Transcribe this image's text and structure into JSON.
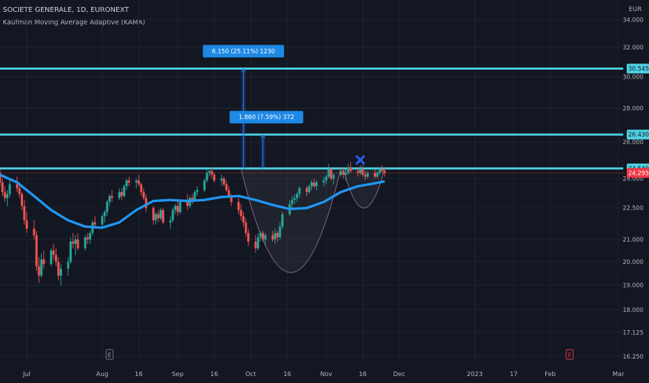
{
  "chart_data": {
    "type": "candlestick",
    "symbol_line": "SOCIETE GENERALE, 1D, EURONEXT",
    "indicator_line": "Kaufman Moving Average Adaptive (KAMA)",
    "currency": "EUR",
    "y_scale": "log",
    "ylim": [
      16.0,
      35.5
    ],
    "y_ticks": [
      "34.000",
      "32.000",
      "30.000",
      "28.000",
      "26.000",
      "24.000",
      "22.500",
      "21.000",
      "20.000",
      "19.000",
      "18.000",
      "17.125",
      "16.250"
    ],
    "x_range": [
      "2022-06-20",
      "2023-03-03"
    ],
    "x_ticks": [
      {
        "label": "Jul",
        "date": "2022-07-01"
      },
      {
        "label": "Aug",
        "date": "2022-08-01"
      },
      {
        "label": "16",
        "date": "2022-08-16"
      },
      {
        "label": "Sep",
        "date": "2022-09-01"
      },
      {
        "label": "16",
        "date": "2022-09-16"
      },
      {
        "label": "Oct",
        "date": "2022-10-01"
      },
      {
        "label": "16",
        "date": "2022-10-16"
      },
      {
        "label": "Nov",
        "date": "2022-11-01"
      },
      {
        "label": "16",
        "date": "2022-11-16"
      },
      {
        "label": "Dec",
        "date": "2022-12-01"
      },
      {
        "label": "2023",
        "date": "2023-01-01"
      },
      {
        "label": "17",
        "date": "2023-01-17"
      },
      {
        "label": "Feb",
        "date": "2023-02-01"
      },
      {
        "label": "Mar",
        "date": "2023-03-01"
      }
    ],
    "horizontal_levels": [
      {
        "label": "30.545",
        "value": 30.545,
        "color": "#4dd0e1"
      },
      {
        "label": "26.430",
        "value": 26.43,
        "color": "#4dd0e1"
      },
      {
        "label": "24.540",
        "value": 24.54,
        "color": "#4dd0e1"
      }
    ],
    "last_price": {
      "label": "24.295",
      "value": 24.295,
      "color": "#f23645"
    },
    "measure_labels": [
      {
        "text": "6.150 (25.11%) 1230",
        "value": 30.545
      },
      {
        "text": "1.860 (7.59%) 372",
        "value": 26.43
      }
    ],
    "event_markers": [
      {
        "letter": "E",
        "date": "2022-08-04"
      },
      {
        "letter": "E",
        "date": "2023-02-09"
      }
    ],
    "colors": {
      "up": "#26a69a",
      "down": "#ef5350",
      "kama": "#2196f3",
      "cup": "#7b5e7b",
      "mark": "#2962ff",
      "label_box": "#1e88e5"
    },
    "series": [
      {
        "name": "SOCIETE GENERALE",
        "ohlc": [
          [
            "2022-06-20",
            24.3,
            24.5,
            23.6,
            23.8
          ],
          [
            "2022-06-21",
            23.8,
            24.0,
            23.1,
            23.3
          ],
          [
            "2022-06-22",
            23.3,
            23.6,
            22.8,
            23.0
          ],
          [
            "2022-06-23",
            23.0,
            23.4,
            22.6,
            23.2
          ],
          [
            "2022-06-24",
            23.2,
            23.9,
            23.0,
            23.7
          ],
          [
            "2022-06-27",
            23.7,
            24.1,
            23.3,
            23.5
          ],
          [
            "2022-06-28",
            23.5,
            23.8,
            23.0,
            23.2
          ],
          [
            "2022-06-29",
            23.2,
            23.3,
            22.4,
            22.6
          ],
          [
            "2022-06-30",
            22.6,
            22.9,
            21.7,
            21.9
          ],
          [
            "2022-07-01",
            21.9,
            22.3,
            21.3,
            21.5
          ],
          [
            "2022-07-04",
            21.5,
            21.9,
            21.0,
            21.2
          ],
          [
            "2022-07-05",
            21.2,
            21.4,
            19.6,
            19.8
          ],
          [
            "2022-07-06",
            19.8,
            20.2,
            19.1,
            19.4
          ],
          [
            "2022-07-07",
            19.4,
            20.4,
            19.3,
            20.1
          ],
          [
            "2022-07-08",
            20.1,
            20.5,
            19.7,
            19.9
          ],
          [
            "2022-07-11",
            19.9,
            20.6,
            19.8,
            20.5
          ],
          [
            "2022-07-12",
            20.5,
            20.8,
            20.1,
            20.3
          ],
          [
            "2022-07-13",
            20.3,
            20.6,
            19.8,
            20.0
          ],
          [
            "2022-07-14",
            20.0,
            20.2,
            19.2,
            19.4
          ],
          [
            "2022-07-15",
            19.4,
            19.9,
            19.0,
            19.7
          ],
          [
            "2022-07-18",
            19.7,
            20.2,
            19.4,
            20.0
          ],
          [
            "2022-07-19",
            20.0,
            21.1,
            19.9,
            20.9
          ],
          [
            "2022-07-20",
            20.9,
            21.3,
            20.6,
            20.8
          ],
          [
            "2022-07-21",
            20.8,
            21.2,
            20.3,
            21.0
          ],
          [
            "2022-07-22",
            21.0,
            21.3,
            20.5,
            20.6
          ],
          [
            "2022-07-25",
            20.6,
            21.2,
            20.5,
            21.1
          ],
          [
            "2022-07-26",
            21.1,
            21.3,
            20.8,
            21.0
          ],
          [
            "2022-07-27",
            21.0,
            21.4,
            20.8,
            21.3
          ],
          [
            "2022-07-28",
            21.3,
            21.9,
            21.2,
            21.8
          ],
          [
            "2022-07-29",
            21.8,
            22.1,
            21.5,
            21.7
          ],
          [
            "2022-08-01",
            21.7,
            22.2,
            21.6,
            22.1
          ],
          [
            "2022-08-02",
            22.1,
            22.4,
            21.8,
            22.3
          ],
          [
            "2022-08-03",
            22.3,
            22.9,
            22.1,
            22.8
          ],
          [
            "2022-08-04",
            22.8,
            23.2,
            22.6,
            23.1
          ],
          [
            "2022-08-05",
            23.1,
            23.4,
            22.8,
            23.0
          ],
          [
            "2022-08-08",
            23.0,
            23.5,
            22.9,
            23.3
          ],
          [
            "2022-08-09",
            23.3,
            23.5,
            22.9,
            23.1
          ],
          [
            "2022-08-10",
            23.1,
            23.7,
            23.0,
            23.6
          ],
          [
            "2022-08-11",
            23.6,
            24.0,
            23.4,
            23.9
          ],
          [
            "2022-08-12",
            23.9,
            24.1,
            23.6,
            23.8
          ],
          [
            "2022-08-15",
            23.8,
            24.0,
            23.5,
            23.9
          ],
          [
            "2022-08-16",
            23.9,
            24.2,
            23.6,
            23.7
          ],
          [
            "2022-08-17",
            23.7,
            23.8,
            23.1,
            23.3
          ],
          [
            "2022-08-18",
            23.3,
            23.5,
            22.9,
            23.0
          ],
          [
            "2022-08-19",
            23.0,
            23.2,
            22.3,
            22.5
          ],
          [
            "2022-08-22",
            22.5,
            22.6,
            21.7,
            21.9
          ],
          [
            "2022-08-23",
            21.9,
            22.3,
            21.7,
            22.2
          ],
          [
            "2022-08-24",
            22.2,
            22.4,
            21.8,
            22.0
          ],
          [
            "2022-08-25",
            22.0,
            22.5,
            21.9,
            22.4
          ],
          [
            "2022-08-26",
            22.4,
            22.5,
            21.7,
            21.8
          ],
          [
            "2022-08-29",
            21.8,
            22.1,
            21.5,
            21.9
          ],
          [
            "2022-08-30",
            21.9,
            22.5,
            21.8,
            22.4
          ],
          [
            "2022-08-31",
            22.4,
            22.7,
            22.2,
            22.6
          ],
          [
            "2022-09-01",
            22.6,
            22.9,
            22.1,
            22.3
          ],
          [
            "2022-09-02",
            22.3,
            22.9,
            22.2,
            22.8
          ],
          [
            "2022-09-05",
            22.8,
            23.2,
            22.4,
            22.6
          ],
          [
            "2022-09-06",
            22.6,
            23.1,
            22.5,
            23.0
          ],
          [
            "2022-09-07",
            23.0,
            23.2,
            22.7,
            22.9
          ],
          [
            "2022-09-08",
            22.9,
            23.4,
            22.8,
            23.3
          ],
          [
            "2022-09-09",
            23.3,
            23.6,
            23.1,
            23.4
          ],
          [
            "2022-09-12",
            23.4,
            24.0,
            23.3,
            23.9
          ],
          [
            "2022-09-13",
            23.9,
            24.5,
            23.8,
            24.3
          ],
          [
            "2022-09-14",
            24.3,
            24.6,
            24.1,
            24.4
          ],
          [
            "2022-09-15",
            24.4,
            24.6,
            24.0,
            24.2
          ],
          [
            "2022-09-16",
            24.2,
            24.3,
            23.8,
            23.9
          ],
          [
            "2022-09-19",
            23.9,
            24.2,
            23.6,
            24.0
          ],
          [
            "2022-09-20",
            24.0,
            24.1,
            23.6,
            23.7
          ],
          [
            "2022-09-21",
            23.7,
            23.9,
            23.3,
            23.4
          ],
          [
            "2022-09-22",
            23.4,
            23.6,
            23.0,
            23.1
          ],
          [
            "2022-09-23",
            23.1,
            23.2,
            22.6,
            22.8
          ],
          [
            "2022-09-26",
            22.8,
            23.0,
            22.2,
            22.4
          ],
          [
            "2022-09-27",
            22.4,
            22.7,
            21.9,
            22.1
          ],
          [
            "2022-09-28",
            22.1,
            22.3,
            21.6,
            21.8
          ],
          [
            "2022-09-29",
            21.8,
            22.0,
            21.1,
            21.3
          ],
          [
            "2022-09-30",
            21.3,
            21.5,
            20.7,
            20.9
          ],
          [
            "2022-10-03",
            20.9,
            21.2,
            20.4,
            20.6
          ],
          [
            "2022-10-04",
            20.6,
            21.3,
            20.5,
            21.1
          ],
          [
            "2022-10-05",
            21.1,
            21.4,
            20.9,
            21.3
          ],
          [
            "2022-10-06",
            21.3,
            21.4,
            20.9,
            21.0
          ],
          [
            "2022-10-07",
            21.0,
            21.3,
            20.7,
            21.2
          ],
          [
            "2022-10-10",
            21.2,
            21.4,
            20.9,
            21.0
          ],
          [
            "2022-10-11",
            21.0,
            21.5,
            20.8,
            21.3
          ],
          [
            "2022-10-12",
            21.3,
            21.4,
            20.9,
            21.1
          ],
          [
            "2022-10-13",
            21.1,
            21.8,
            21.0,
            21.6
          ],
          [
            "2022-10-14",
            21.6,
            22.3,
            21.5,
            22.2
          ],
          [
            "2022-10-17",
            22.2,
            22.9,
            22.1,
            22.7
          ],
          [
            "2022-10-18",
            22.7,
            23.1,
            22.5,
            22.9
          ],
          [
            "2022-10-19",
            22.9,
            23.2,
            22.7,
            23.0
          ],
          [
            "2022-10-20",
            23.0,
            23.3,
            22.8,
            23.2
          ],
          [
            "2022-10-21",
            23.2,
            23.6,
            23.0,
            23.5
          ],
          [
            "2022-10-24",
            23.5,
            23.6,
            23.1,
            23.3
          ],
          [
            "2022-10-25",
            23.3,
            23.7,
            23.2,
            23.6
          ],
          [
            "2022-10-26",
            23.6,
            23.9,
            23.4,
            23.8
          ],
          [
            "2022-10-27",
            23.8,
            24.0,
            23.5,
            23.6
          ],
          [
            "2022-10-28",
            23.6,
            23.9,
            23.4,
            23.8
          ],
          [
            "2022-10-31",
            23.8,
            24.1,
            23.6,
            23.9
          ],
          [
            "2022-11-01",
            23.9,
            24.2,
            23.7,
            24.1
          ],
          [
            "2022-11-02",
            24.1,
            24.8,
            24.0,
            24.5
          ],
          [
            "2022-11-03",
            24.5,
            24.6,
            23.9,
            24.0
          ],
          [
            "2022-11-04",
            24.0,
            24.3,
            23.7,
            24.2
          ],
          [
            "2022-11-07",
            24.2,
            24.6,
            24.1,
            24.4
          ],
          [
            "2022-11-08",
            24.4,
            24.6,
            24.0,
            24.2
          ],
          [
            "2022-11-09",
            24.2,
            24.5,
            23.9,
            24.3
          ],
          [
            "2022-11-10",
            24.3,
            24.8,
            24.2,
            24.6
          ],
          [
            "2022-11-11",
            24.6,
            24.9,
            24.3,
            24.4
          ],
          [
            "2022-11-14",
            24.4,
            24.6,
            24.1,
            24.3
          ],
          [
            "2022-11-15",
            24.3,
            24.7,
            24.2,
            24.5
          ],
          [
            "2022-11-16",
            24.5,
            24.7,
            24.1,
            24.2
          ],
          [
            "2022-11-17",
            24.2,
            24.4,
            23.9,
            24.1
          ],
          [
            "2022-11-18",
            24.1,
            24.4,
            24.0,
            24.3
          ],
          [
            "2022-11-21",
            24.3,
            24.5,
            24.0,
            24.1
          ],
          [
            "2022-11-22",
            24.1,
            24.4,
            24.0,
            24.3
          ],
          [
            "2022-11-23",
            24.3,
            24.6,
            24.2,
            24.5
          ],
          [
            "2022-11-24",
            24.5,
            24.7,
            24.3,
            24.4
          ],
          [
            "2022-11-25",
            24.4,
            24.6,
            24.1,
            24.295
          ]
        ]
      },
      {
        "name": "KAMA",
        "points": [
          [
            "2022-06-20",
            24.2
          ],
          [
            "2022-06-27",
            23.8
          ],
          [
            "2022-07-04",
            23.1
          ],
          [
            "2022-07-11",
            22.4
          ],
          [
            "2022-07-18",
            21.9
          ],
          [
            "2022-07-25",
            21.6
          ],
          [
            "2022-08-01",
            21.55
          ],
          [
            "2022-08-08",
            21.8
          ],
          [
            "2022-08-15",
            22.4
          ],
          [
            "2022-08-22",
            22.85
          ],
          [
            "2022-08-29",
            22.9
          ],
          [
            "2022-09-05",
            22.85
          ],
          [
            "2022-09-12",
            22.9
          ],
          [
            "2022-09-19",
            23.05
          ],
          [
            "2022-09-26",
            23.1
          ],
          [
            "2022-10-03",
            22.9
          ],
          [
            "2022-10-10",
            22.65
          ],
          [
            "2022-10-17",
            22.45
          ],
          [
            "2022-10-24",
            22.5
          ],
          [
            "2022-10-31",
            22.8
          ],
          [
            "2022-11-07",
            23.3
          ],
          [
            "2022-11-14",
            23.6
          ],
          [
            "2022-11-21",
            23.75
          ],
          [
            "2022-11-25",
            23.85
          ]
        ]
      }
    ]
  }
}
